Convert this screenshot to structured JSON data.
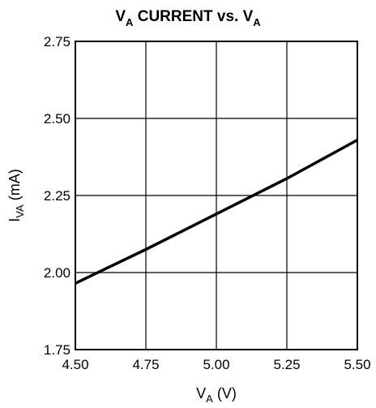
{
  "chart_data": {
    "type": "line",
    "title": {
      "main": "V",
      "sub": "A",
      "rest": " CURRENT vs. V",
      "sub2": "A"
    },
    "xlabel": {
      "main": "V",
      "sub": "A",
      "unit": " (V)"
    },
    "ylabel": {
      "main": "I",
      "sub": "VA",
      "unit": " (mA)"
    },
    "xlim": [
      4.5,
      5.5
    ],
    "ylim": [
      1.75,
      2.75
    ],
    "x_ticks": [
      4.5,
      4.75,
      5.0,
      5.25,
      5.5
    ],
    "x_tick_labels": [
      "4.50",
      "4.75",
      "5.00",
      "5.25",
      "5.50"
    ],
    "y_ticks": [
      1.75,
      2.0,
      2.25,
      2.5,
      2.75
    ],
    "y_tick_labels": [
      "1.75",
      "2.00",
      "2.25",
      "2.50",
      "2.75"
    ],
    "grid": true,
    "series": [
      {
        "x": [
          4.5,
          4.75,
          5.0,
          5.25,
          5.5
        ],
        "y": [
          1.965,
          2.075,
          2.19,
          2.305,
          2.43
        ]
      }
    ]
  }
}
